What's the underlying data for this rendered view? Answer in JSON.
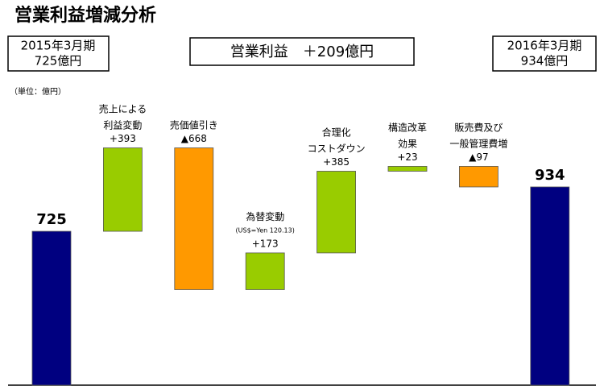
{
  "chart_data": {
    "type": "waterfall",
    "title": "営業利益増減分析",
    "header_left": [
      "2015年3月期",
      "725億円"
    ],
    "header_center": "営業利益　＋209億円",
    "header_right": [
      "2016年3月期",
      "934億円"
    ],
    "unit": "（単位：億円）",
    "categories": [
      null,
      "売上による\n利益変動",
      "売価値引き",
      "為替変動",
      "合理化\nコストダウン",
      "構造改革\n効果",
      "販売費及び\n一般管理費増",
      null
    ],
    "notes": [
      null,
      null,
      null,
      "(US$=Yen 120.13)",
      null,
      null,
      null,
      null
    ],
    "values": [
      725,
      393,
      -668,
      173,
      385,
      23,
      -97,
      934
    ],
    "value_labels": [
      "725",
      "+393",
      "▲668",
      "+173",
      "+385",
      "+23",
      "▲97",
      "934"
    ],
    "colors": {
      "total": "#000080",
      "increase": "#99cc00",
      "decrease": "#ff9900"
    }
  }
}
